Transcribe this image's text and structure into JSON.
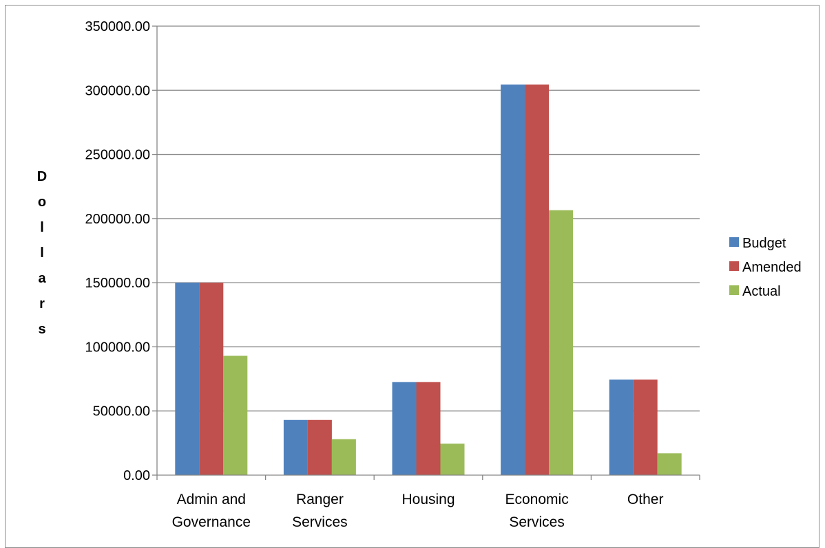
{
  "chart_data": {
    "type": "bar",
    "title": "",
    "xlabel": "",
    "ylabel": "Dollars",
    "ylim": [
      0,
      350000
    ],
    "y_ticks": [
      "0.00",
      "50000.00",
      "100000.00",
      "150000.00",
      "200000.00",
      "250000.00",
      "300000.00",
      "350000.00"
    ],
    "grid": true,
    "legend_position": "right",
    "categories": [
      [
        "Admin and",
        "Governance"
      ],
      [
        "Ranger",
        "Services"
      ],
      [
        "Housing"
      ],
      [
        "Economic",
        "Services"
      ],
      [
        "Other"
      ]
    ],
    "series": [
      {
        "name": "Budget",
        "color": "#4f81bd",
        "values": [
          150000,
          43000,
          72500,
          304500,
          74500
        ]
      },
      {
        "name": "Amended",
        "color": "#c0504d",
        "values": [
          150000,
          43000,
          72500,
          304500,
          74500
        ]
      },
      {
        "name": "Actual",
        "color": "#9bbb59",
        "values": [
          93000,
          28000,
          24500,
          206500,
          17000
        ]
      }
    ]
  }
}
